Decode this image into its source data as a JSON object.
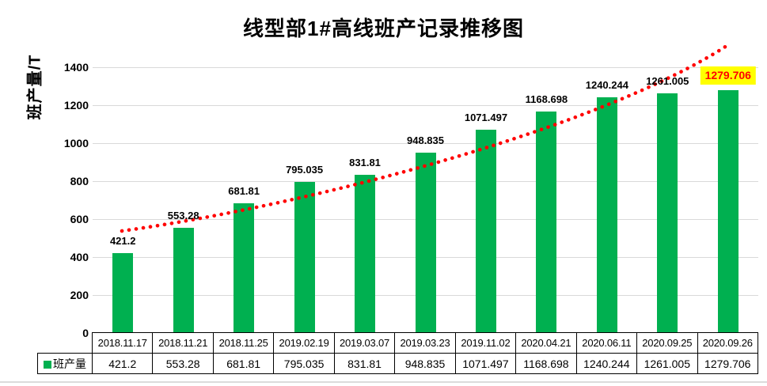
{
  "title": "线型部1#高线班产记录推移图",
  "y_axis_title": "班产量/T",
  "legend_label": "班产量",
  "colors": {
    "bar": "#00B050",
    "trend": "#FF0000",
    "grid": "#D9D9D9",
    "highlight_bg": "#FFFF00",
    "highlight_text": "#FF0000"
  },
  "chart_data": {
    "type": "bar",
    "title": "线型部1#高线班产记录推移图",
    "xlabel": "",
    "ylabel": "班产量/T",
    "categories": [
      "2018.11.17",
      "2018.11.21",
      "2018.11.25",
      "2019.02.19",
      "2019.03.07",
      "2019.03.23",
      "2019.11.02",
      "2020.04.21",
      "2020.06.11",
      "2020.09.25",
      "2020.09.26"
    ],
    "series": [
      {
        "name": "班产量",
        "values": [
          421.2,
          553.28,
          681.81,
          795.035,
          831.81,
          948.835,
          1071.497,
          1168.698,
          1240.244,
          1261.005,
          1279.706
        ]
      }
    ],
    "data_labels": [
      "421.2",
      "553.28",
      "681.81",
      "795.035",
      "831.81",
      "948.835",
      "1071.497",
      "1168.698",
      "1240.244",
      "1261.005",
      "1279.706"
    ],
    "highlighted_label_index": 10,
    "y_ticks": [
      0,
      200,
      400,
      600,
      800,
      1000,
      1200,
      1400
    ],
    "ylim": [
      0,
      1500
    ],
    "grid": true,
    "bar_color": "#00B050",
    "trendline": {
      "style": "dotted",
      "color": "#FF0000"
    },
    "legend_position": "bottom-table"
  },
  "table": {
    "legend": "班产量",
    "header_row": [
      "2018.11.17",
      "2018.11.21",
      "2018.11.25",
      "2019.02.19",
      "2019.03.07",
      "2019.03.23",
      "2019.11.02",
      "2020.04.21",
      "2020.06.11",
      "2020.09.25",
      "2020.09.26"
    ],
    "value_row": [
      "421.2",
      "553.28",
      "681.81",
      "795.035",
      "831.81",
      "948.835",
      "1071.497",
      "1168.698",
      "1240.244",
      "1261.005",
      "1279.706"
    ]
  }
}
